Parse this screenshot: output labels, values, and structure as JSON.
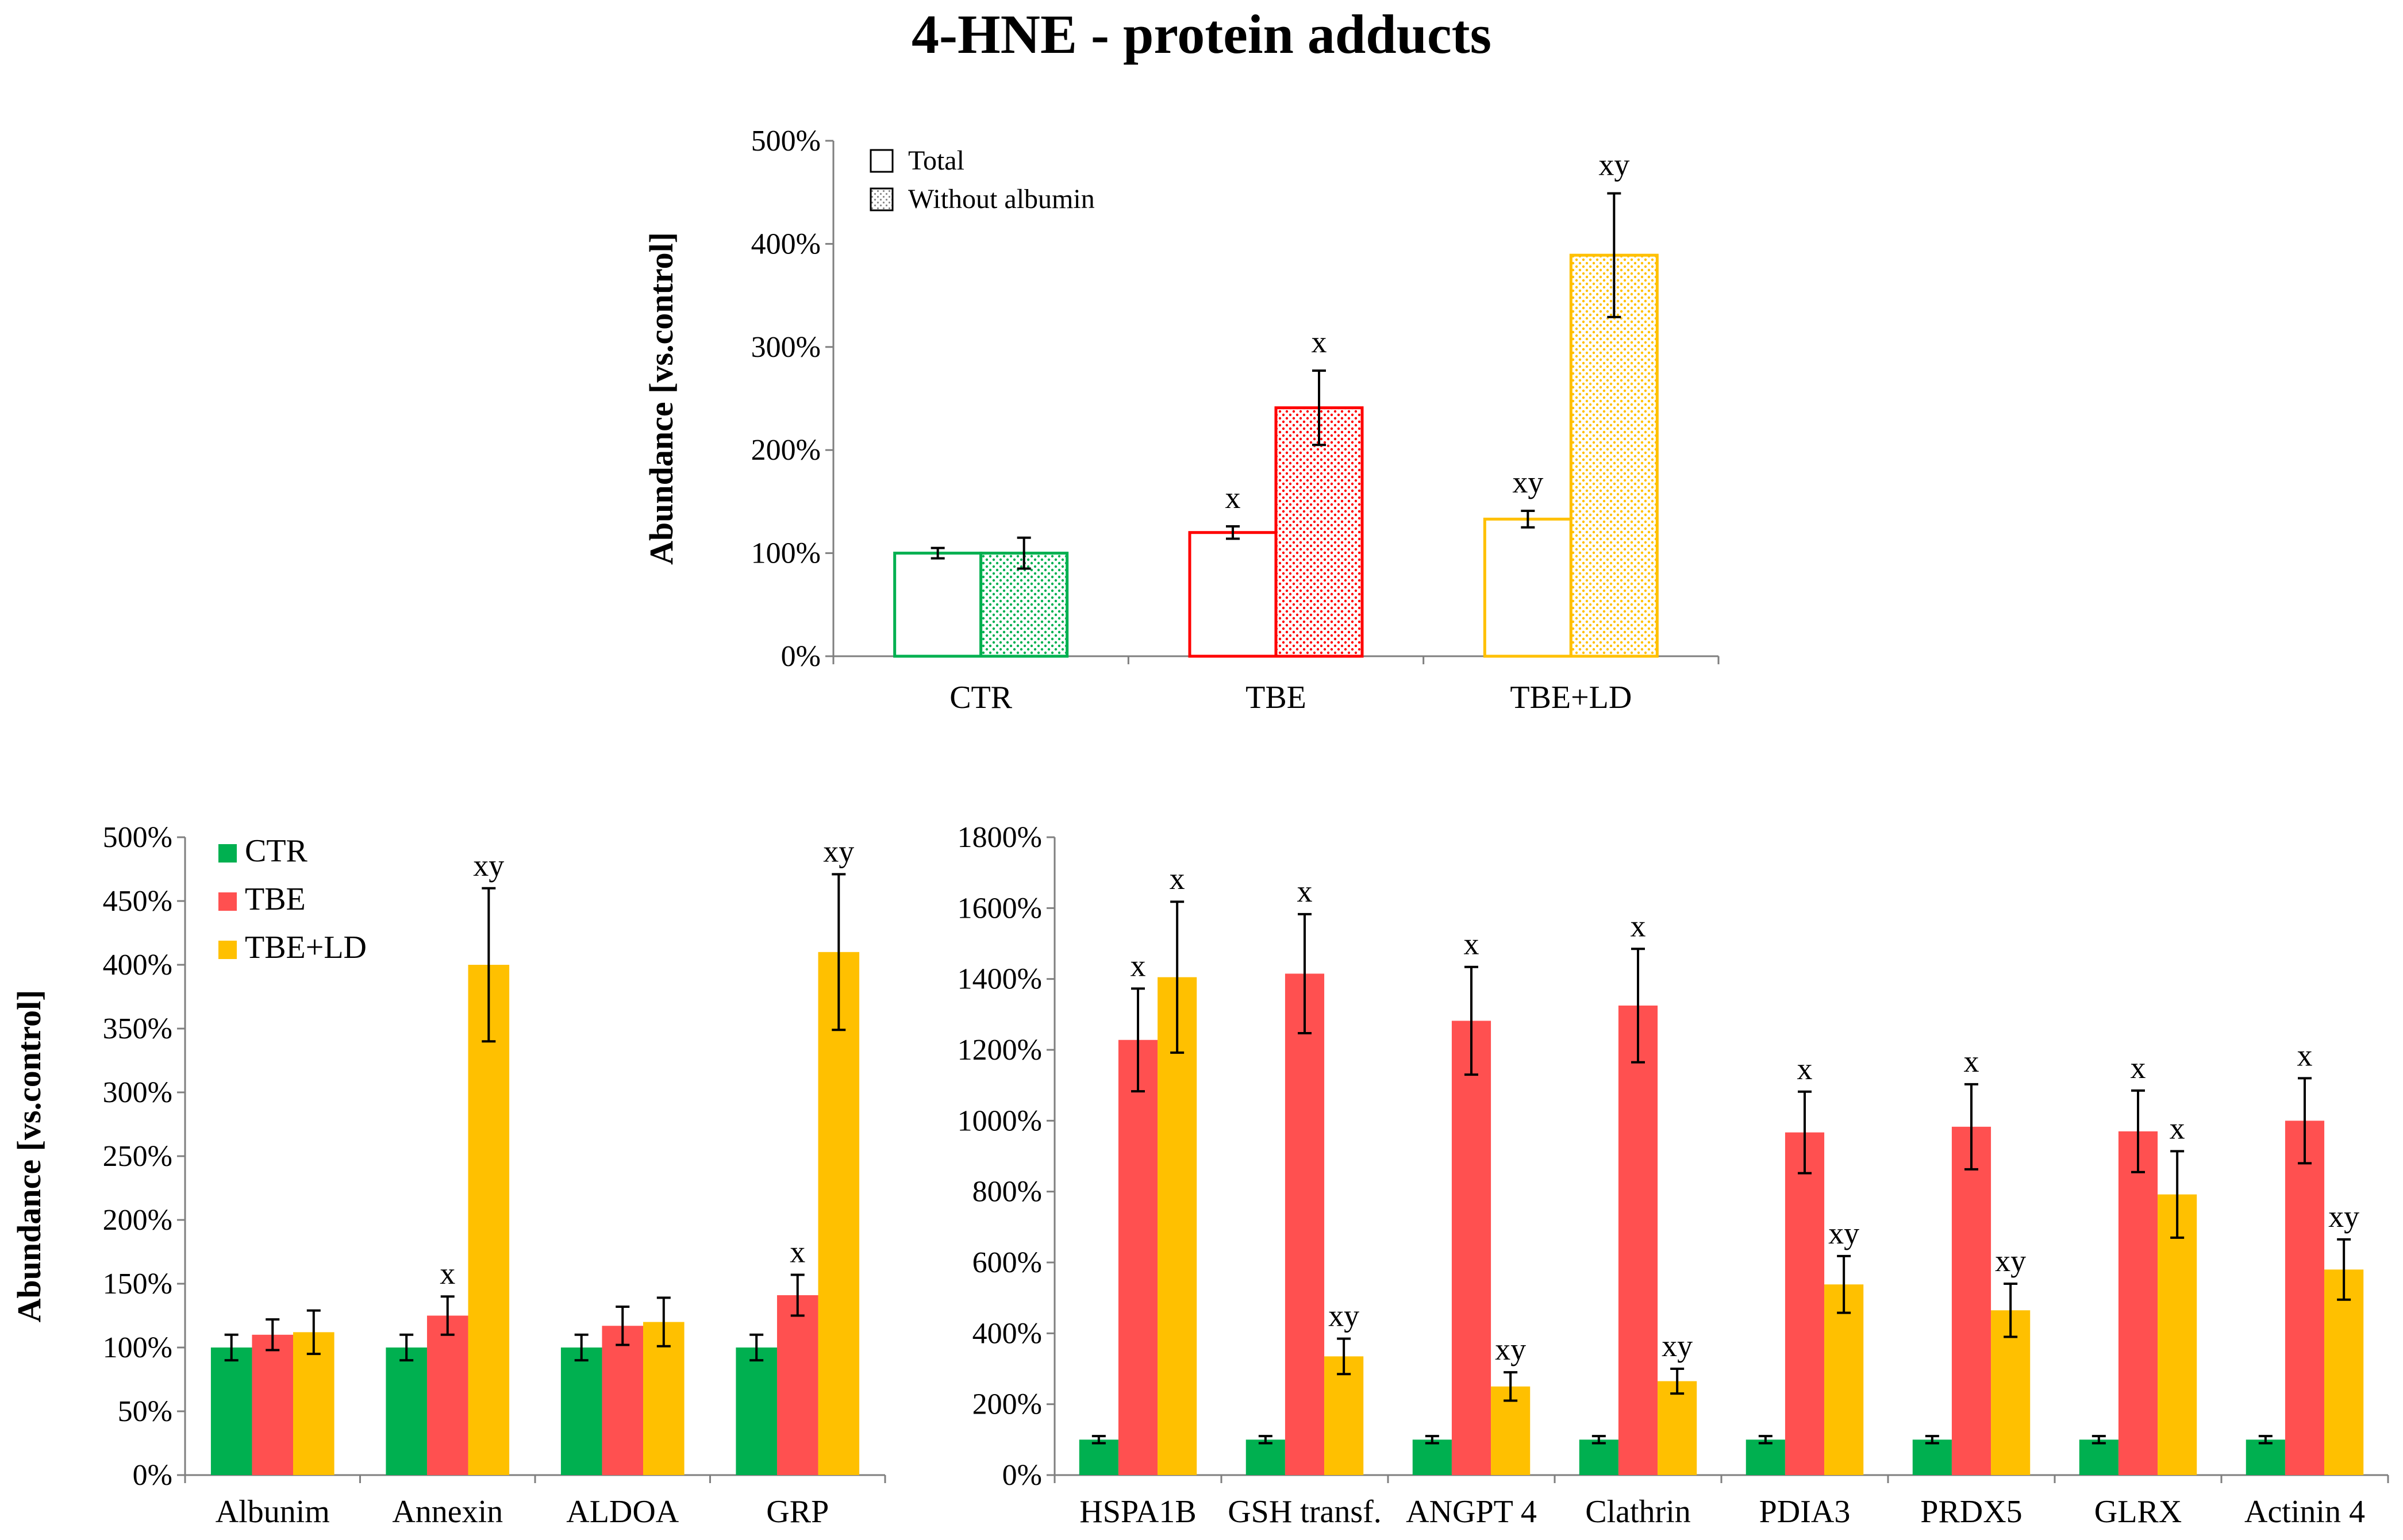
{
  "figure_title": "4-HNE - protein adducts",
  "chart_data": [
    {
      "id": "top",
      "type": "bar",
      "title": "",
      "ylabel": "Abundance [vs.control]",
      "xlabel": "",
      "ylim": [
        0,
        500
      ],
      "yticks": [
        "0%",
        "100%",
        "200%",
        "300%",
        "400%",
        "500%"
      ],
      "categories": [
        "CTR",
        "TBE",
        "TBE+LD"
      ],
      "category_colors": [
        "#00B050",
        "#FF0000",
        "#FFC000"
      ],
      "legend": {
        "position": "top-left",
        "entries": [
          "Total",
          "Without albumin"
        ]
      },
      "series": [
        {
          "name": "Total",
          "style": "hollow",
          "values": [
            100,
            120,
            133
          ],
          "errors": [
            5,
            6,
            8
          ],
          "annotations": [
            "",
            "x",
            "xy"
          ]
        },
        {
          "name": "Without albumin",
          "style": "hatched",
          "values": [
            100,
            241,
            389
          ],
          "errors": [
            15,
            36,
            60
          ],
          "annotations": [
            "",
            "x",
            "xy"
          ]
        }
      ]
    },
    {
      "id": "bottom-left",
      "type": "bar",
      "title": "",
      "ylabel": "Abundance [vs.control]",
      "xlabel": "",
      "ylim": [
        0,
        500
      ],
      "yticks": [
        "0%",
        "50%",
        "100%",
        "150%",
        "200%",
        "250%",
        "300%",
        "350%",
        "400%",
        "450%",
        "500%"
      ],
      "categories": [
        "Albunim",
        "Annexin",
        "ALDOA",
        "GRP"
      ],
      "legend": {
        "position": "top-left",
        "entries": [
          "CTR",
          "TBE",
          "TBE+LD"
        ]
      },
      "series": [
        {
          "name": "CTR",
          "color": "#00B050",
          "values": [
            100,
            100,
            100,
            100
          ],
          "errors": [
            10,
            10,
            10,
            10
          ],
          "annotations": [
            "",
            "",
            "",
            ""
          ]
        },
        {
          "name": "TBE",
          "color": "#FF5050",
          "values": [
            110,
            125,
            117,
            141
          ],
          "errors": [
            12,
            15,
            15,
            16
          ],
          "annotations": [
            "",
            "x",
            "",
            "x"
          ]
        },
        {
          "name": "TBE+LD",
          "color": "#FFC000",
          "values": [
            112,
            400,
            120,
            410
          ],
          "errors": [
            17,
            60,
            19,
            61
          ],
          "annotations": [
            "",
            "xy",
            "",
            "xy"
          ]
        }
      ]
    },
    {
      "id": "bottom-right",
      "type": "bar",
      "title": "",
      "ylabel": "",
      "xlabel": "",
      "ylim": [
        0,
        1800
      ],
      "yticks": [
        "0%",
        "200%",
        "400%",
        "600%",
        "800%",
        "1000%",
        "1200%",
        "1400%",
        "1600%",
        "1800%"
      ],
      "categories": [
        "HSPA1B",
        "GSH transf.",
        "ANGPT 4",
        "Clathrin",
        "PDIA3",
        "PRDX5",
        "GLRX",
        "Actinin 4"
      ],
      "series": [
        {
          "name": "CTR",
          "color": "#00B050",
          "values": [
            100,
            100,
            100,
            100,
            100,
            100,
            100,
            100
          ],
          "errors": [
            10,
            10,
            10,
            10,
            10,
            10,
            10,
            10
          ],
          "annotations": [
            "",
            "",
            "",
            "",
            "",
            "",
            "",
            ""
          ]
        },
        {
          "name": "TBE",
          "color": "#FF5050",
          "values": [
            1228,
            1415,
            1282,
            1325,
            967,
            983,
            970,
            1000
          ],
          "errors": [
            145,
            168,
            152,
            160,
            115,
            120,
            115,
            120
          ],
          "annotations": [
            "x",
            "x",
            "x",
            "x",
            "x",
            "x",
            "x",
            "x"
          ]
        },
        {
          "name": "TBE+LD",
          "color": "#FFC000",
          "values": [
            1405,
            335,
            250,
            265,
            538,
            465,
            792,
            580
          ],
          "errors": [
            213,
            50,
            40,
            35,
            80,
            75,
            122,
            85
          ],
          "annotations": [
            "x",
            "xy",
            "xy",
            "xy",
            "xy",
            "xy",
            "x",
            "xy"
          ]
        }
      ]
    }
  ]
}
